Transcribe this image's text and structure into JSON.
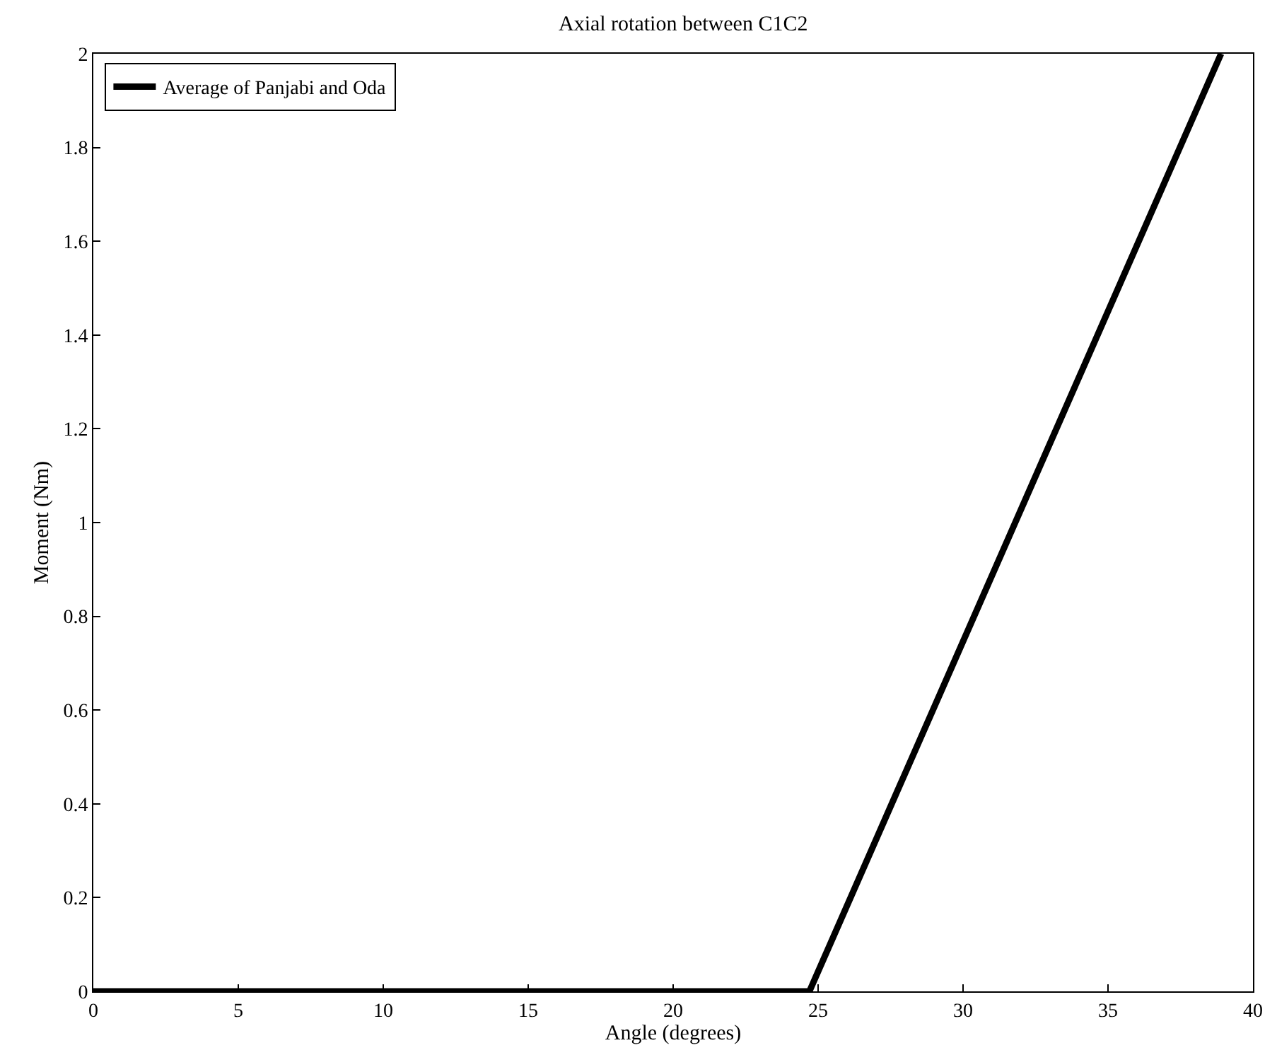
{
  "chart_data": {
    "type": "line",
    "title": "Axial rotation between C1C2",
    "xlabel": "Angle (degrees)",
    "ylabel": "Moment (Nm)",
    "series": [
      {
        "name": "Average of Panjabi and Oda",
        "color": "#000000",
        "x": [
          0,
          24.7,
          38.9
        ],
        "values": [
          0,
          0,
          2
        ]
      }
    ],
    "xlim": [
      0,
      40
    ],
    "xticks": [
      0,
      5,
      10,
      15,
      20,
      25,
      30,
      35,
      40
    ],
    "ylim": [
      0,
      2
    ],
    "yticks": [
      0,
      0.2,
      0.4,
      0.6,
      0.8,
      1,
      1.2,
      1.4,
      1.6,
      1.8,
      2
    ],
    "legend": "top left",
    "marker": "none",
    "line_style": "solid"
  }
}
